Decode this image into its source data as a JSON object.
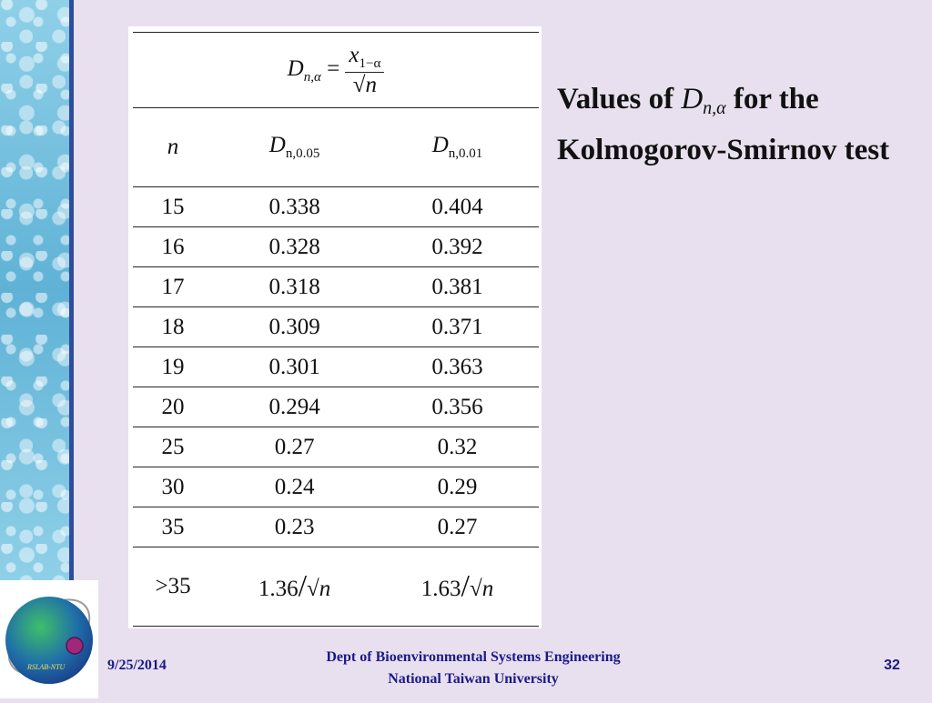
{
  "slide": {
    "title_prefix": "Values of",
    "title_symbol": "D",
    "title_symbol_sub": "n,α",
    "title_suffix": "for the Kolmogorov-Smirnov test",
    "date": "9/25/2014",
    "footer_line1": "Dept of Bioenvironmental Systems Engineering",
    "footer_line2": "National Taiwan University",
    "page_number": "32",
    "logo_text": "RSLAB-NTU"
  },
  "table": {
    "formula": {
      "lhs": "D",
      "lhs_sub": "n,α",
      "num": "x",
      "num_sub": "1−α",
      "den": "√n"
    },
    "headers": [
      {
        "main": "n",
        "sub": ""
      },
      {
        "main": "D",
        "sub": "n,0.05"
      },
      {
        "main": "D",
        "sub": "n,0.01"
      }
    ],
    "rows": [
      [
        "15",
        "0.338",
        "0.404"
      ],
      [
        "16",
        "0.328",
        "0.392"
      ],
      [
        "17",
        "0.318",
        "0.381"
      ],
      [
        "18",
        "0.309",
        "0.371"
      ],
      [
        "19",
        "0.301",
        "0.363"
      ],
      [
        "20",
        "0.294",
        "0.356"
      ],
      [
        "25",
        "0.27",
        "0.32"
      ],
      [
        "30",
        "0.24",
        "0.29"
      ],
      [
        "35",
        "0.23",
        "0.27"
      ]
    ],
    "last_row": [
      "&gt;35",
      "1.36/√n",
      "1.63/√n"
    ],
    "last_row_text": [
      ">35",
      "1.36",
      "1.63"
    ],
    "last_row_den": "√n"
  },
  "colors": {
    "background": "#e8e0ee",
    "footer_text": "#1a1a8a",
    "side_bar_border": "#2f4d9a"
  }
}
